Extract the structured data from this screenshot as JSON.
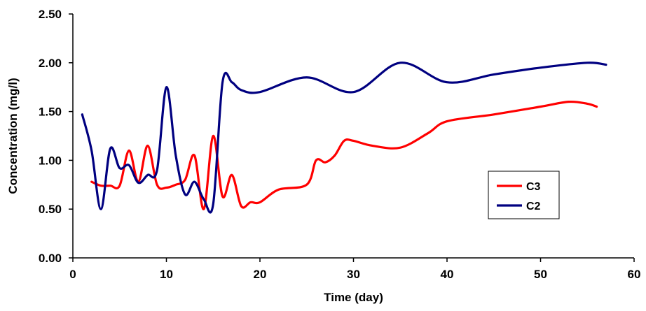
{
  "chart_data": {
    "type": "line",
    "title": "",
    "xlabel": "Time (day)",
    "ylabel": "Concentration (mg/l)",
    "xlim": [
      0,
      60
    ],
    "ylim": [
      0,
      2.5
    ],
    "xticks": [
      "0",
      "10",
      "20",
      "30",
      "40",
      "50",
      "60"
    ],
    "yticks": [
      "0.00",
      "0.50",
      "1.00",
      "1.50",
      "2.00",
      "2.50"
    ],
    "grid": false,
    "legend_position": "right",
    "series": [
      {
        "name": "C3",
        "color": "#ff0000",
        "x": [
          2,
          3,
          4,
          5,
          6,
          7,
          8,
          9,
          10,
          11,
          12,
          13,
          14,
          15,
          16,
          17,
          18,
          19,
          20,
          22,
          25,
          26,
          27,
          28,
          29,
          30,
          32,
          35,
          38,
          40,
          45,
          50,
          53,
          55,
          56
        ],
        "y": [
          0.78,
          0.74,
          0.74,
          0.74,
          1.1,
          0.78,
          1.15,
          0.75,
          0.72,
          0.75,
          0.8,
          1.05,
          0.5,
          1.25,
          0.63,
          0.85,
          0.53,
          0.57,
          0.57,
          0.7,
          0.75,
          1.0,
          0.98,
          1.05,
          1.2,
          1.2,
          1.15,
          1.13,
          1.28,
          1.4,
          1.47,
          1.55,
          1.6,
          1.58,
          1.55
        ]
      },
      {
        "name": "C2",
        "color": "#000080",
        "x": [
          1,
          2,
          3,
          4,
          5,
          6,
          7,
          8,
          9,
          10,
          11,
          12,
          13,
          14,
          15,
          16,
          17,
          18,
          20,
          25,
          30,
          35,
          40,
          45,
          50,
          55,
          57
        ],
        "y": [
          1.47,
          1.1,
          0.5,
          1.12,
          0.92,
          0.95,
          0.77,
          0.85,
          0.9,
          1.75,
          1.05,
          0.65,
          0.78,
          0.6,
          0.55,
          1.8,
          1.8,
          1.72,
          1.7,
          1.85,
          1.7,
          2.0,
          1.8,
          1.88,
          1.95,
          2.0,
          1.98
        ]
      }
    ]
  }
}
